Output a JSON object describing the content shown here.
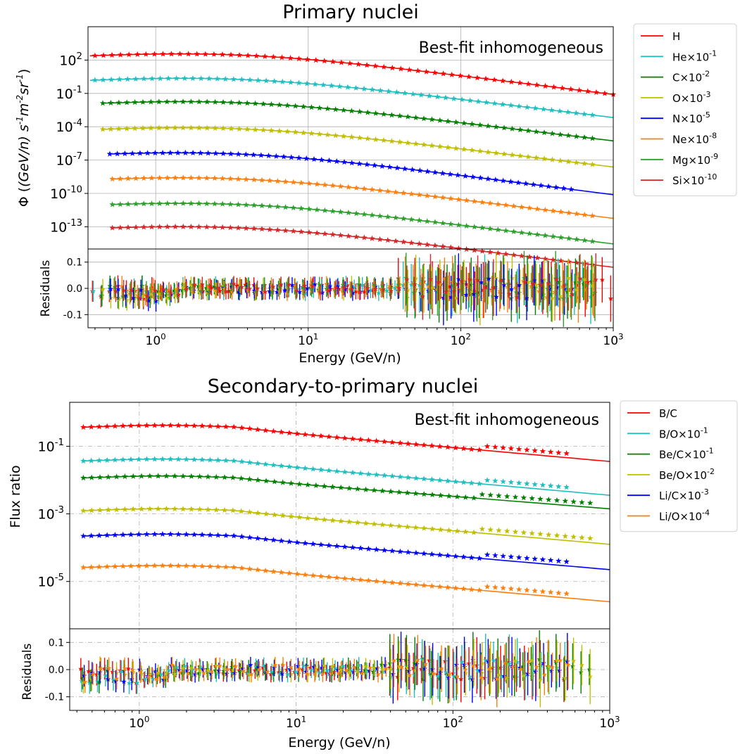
{
  "chart_data": [
    {
      "type": "line",
      "title": "Primary nuclei",
      "annotation": "Best-fit inhomogeneous",
      "xlabel": "Energy (GeV/n)",
      "ylabel_prefix": "Φ (",
      "ylabel_math": "(GeV/n) s",
      "ylabel_text": "Φ ((GeV/n) s^-1 m^-2 sr^-1)",
      "x_scale": "log",
      "y_scale": "log",
      "xlim": [
        0.36,
        1000
      ],
      "ylim_log10": [
        -15,
        5
      ],
      "grid": "solid",
      "legend": "outside-right",
      "x_ticks": [
        {
          "base": "10",
          "exp": "0"
        },
        {
          "base": "10",
          "exp": "1"
        },
        {
          "base": "10",
          "exp": "2"
        },
        {
          "base": "10",
          "exp": "3"
        }
      ],
      "y_ticks": [
        {
          "base": "10",
          "exp": "2"
        },
        {
          "base": "10",
          "exp": "-1"
        },
        {
          "base": "10",
          "exp": "-4"
        },
        {
          "base": "10",
          "exp": "-7"
        },
        {
          "base": "10",
          "exp": "-10"
        },
        {
          "base": "10",
          "exp": "-13"
        }
      ],
      "series": [
        {
          "name": "H",
          "mult": "",
          "color": "#ff0000",
          "x_start": 0.37,
          "plateau_log10": 2.55,
          "index": 2.75,
          "mark_start": 0.4,
          "mark_end": 1000
        },
        {
          "name": "He",
          "mult": "×10",
          "exp": "-1",
          "color": "#1fbfbf",
          "x_start": 0.37,
          "plateau_log10": 0.35,
          "index": 2.7,
          "mark_start": 0.4,
          "mark_end": 730
        },
        {
          "name": "C",
          "mult": "×10",
          "exp": "-2",
          "color": "#008000",
          "x_start": 0.45,
          "plateau_log10": -1.75,
          "index": 2.7,
          "mark_start": 0.45,
          "mark_end": 730
        },
        {
          "name": "O",
          "mult": "×10",
          "exp": "-3",
          "color": "#bfbf00",
          "x_start": 0.45,
          "plateau_log10": -4.1,
          "index": 2.7,
          "mark_start": 0.45,
          "mark_end": 730
        },
        {
          "name": "N",
          "mult": "×10",
          "exp": "-5",
          "color": "#0000ff",
          "x_start": 0.5,
          "plateau_log10": -6.35,
          "index": 2.8,
          "mark_start": 0.5,
          "mark_end": 530
        },
        {
          "name": "Ne",
          "mult": "×10",
          "exp": "-8",
          "color": "#ff7f0e",
          "x_start": 0.52,
          "plateau_log10": -8.6,
          "index": 2.75,
          "mark_start": 0.52,
          "mark_end": 730
        },
        {
          "name": "Mg",
          "mult": "×10",
          "exp": "-9",
          "color": "#2ca02c",
          "x_start": 0.52,
          "plateau_log10": -10.9,
          "index": 2.75,
          "mark_start": 0.52,
          "mark_end": 730
        },
        {
          "name": "Si",
          "mult": "×10",
          "exp": "-10",
          "color": "#d62728",
          "x_start": 0.52,
          "plateau_log10": -13.0,
          "index": 2.75,
          "mark_start": 0.52,
          "mark_end": 730
        }
      ],
      "residuals": {
        "ylabel": "Residuals",
        "ylim": [
          -0.15,
          0.15
        ],
        "y_ticks": [
          "0.1",
          "0.0",
          "-0.1"
        ]
      }
    },
    {
      "type": "line",
      "title": "Secondary-to-primary nuclei",
      "annotation": "Best-fit inhomogeneous",
      "xlabel": "Energy (GeV/n)",
      "ylabel": "Flux ratio",
      "x_scale": "log",
      "y_scale": "log",
      "xlim": [
        0.36,
        1000
      ],
      "ylim_log10": [
        -6.4,
        0.3
      ],
      "grid": "dash-dot",
      "legend": "outside-right",
      "x_ticks": [
        {
          "base": "10",
          "exp": "0"
        },
        {
          "base": "10",
          "exp": "1"
        },
        {
          "base": "10",
          "exp": "2"
        },
        {
          "base": "10",
          "exp": "3"
        }
      ],
      "y_ticks": [
        {
          "base": "10",
          "exp": "-1"
        },
        {
          "base": "10",
          "exp": "-3"
        },
        {
          "base": "10",
          "exp": "-5"
        }
      ],
      "series": [
        {
          "name": "B/C",
          "mult": "",
          "color": "#ff0000",
          "plateau_log10": -0.5,
          "end_log10": -1.45,
          "mark_end": 530
        },
        {
          "name": "B/O",
          "mult": "×10",
          "exp": "-1",
          "color": "#1fbfbf",
          "plateau_log10": -1.5,
          "end_log10": -2.45,
          "mark_end": 530
        },
        {
          "name": "Be/C",
          "mult": "×10",
          "exp": "-1",
          "color": "#008000",
          "plateau_log10": -2.0,
          "end_log10": -2.85,
          "mark_end": 750
        },
        {
          "name": "Be/O",
          "mult": "×10",
          "exp": "-2",
          "color": "#bfbf00",
          "plateau_log10": -2.97,
          "end_log10": -3.9,
          "mark_end": 750
        },
        {
          "name": "Li/C",
          "mult": "×10",
          "exp": "-3",
          "color": "#0000ff",
          "plateau_log10": -3.72,
          "end_log10": -4.65,
          "mark_end": 530
        },
        {
          "name": "Li/O",
          "mult": "×10",
          "exp": "-4",
          "color": "#ff7f0e",
          "plateau_log10": -4.65,
          "end_log10": -5.6,
          "mark_end": 530
        }
      ],
      "residuals": {
        "ylabel": "Residuals",
        "ylim": [
          -0.15,
          0.15
        ],
        "y_ticks": [
          "0.1",
          "0.0",
          "-0.1"
        ]
      }
    }
  ]
}
